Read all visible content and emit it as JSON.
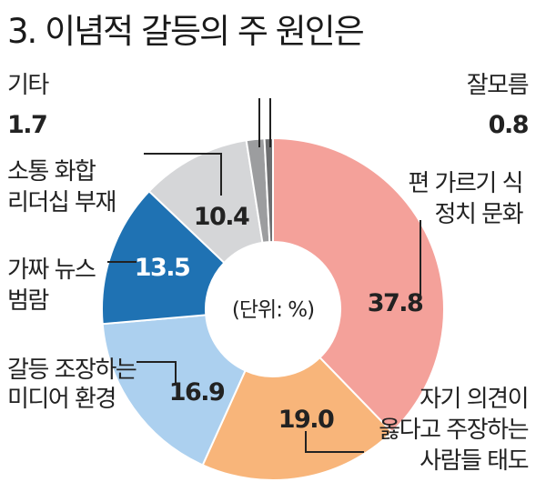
{
  "chart_data": {
    "type": "pie",
    "title": "3. 이념적 갈등의 주 원인은",
    "unit_label": "(단위: %)",
    "slices": [
      {
        "label_lines": [
          "편 가르기 식",
          "정치 문화"
        ],
        "value": 37.8,
        "value_text": "37.8",
        "color": "#f4a19a"
      },
      {
        "label_lines": [
          "자기 의견이",
          "옳다고 주장하는",
          "사람들 태도"
        ],
        "value": 19.0,
        "value_text": "19.0",
        "color": "#f8b57a"
      },
      {
        "label_lines": [
          "갈등 조장하는",
          "미디어 환경"
        ],
        "value": 16.9,
        "value_text": "16.9",
        "color": "#acd0ef"
      },
      {
        "label_lines": [
          "가짜 뉴스",
          "범람"
        ],
        "value": 13.5,
        "value_text": "13.5",
        "color": "#1f72b3"
      },
      {
        "label_lines": [
          "소통 화합",
          "리더십 부재"
        ],
        "value": 10.4,
        "value_text": "10.4",
        "color": "#d5d6d8"
      },
      {
        "label_lines": [
          "기타"
        ],
        "value": 1.7,
        "value_text": "1.7",
        "color": "#9c9d9f"
      },
      {
        "label_lines": [
          "잘모름"
        ],
        "value": 0.8,
        "value_text": "0.8",
        "color": "#6e6f71"
      }
    ]
  }
}
